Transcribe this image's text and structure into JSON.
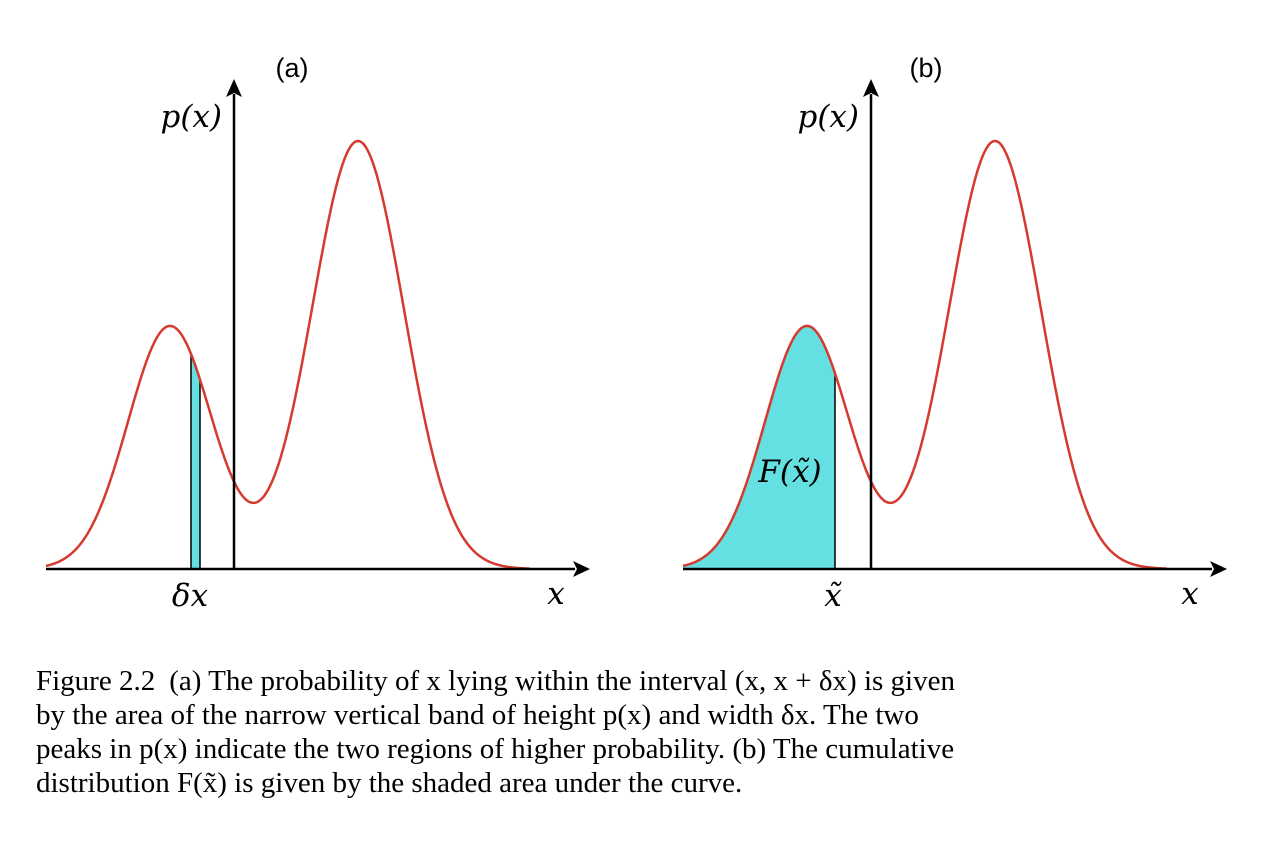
{
  "panels": [
    {
      "label": "(a)",
      "ylabel": "p(x)",
      "xlabel": "x",
      "marker": "δx",
      "area_label": ""
    },
    {
      "label": "(b)",
      "ylabel": "p(x)",
      "xlabel": "x",
      "marker": "x̃",
      "area_label": "F(x̃)"
    }
  ],
  "colors": {
    "curve": "#d63a2f",
    "fill": "#64e0e3",
    "axis": "#000000"
  },
  "caption": {
    "figure_label": "Figure 2.2",
    "lines": [
      "(a) The probability of x lying within the interval (x, x + δx) is given",
      "by the area of the narrow vertical band of height p(x) and width δx. The two",
      "peaks in p(x) indicate the two regions of higher probability. (b) The cumulative",
      "distribution F(x̃) is given by the shaded area under the curve."
    ]
  }
}
